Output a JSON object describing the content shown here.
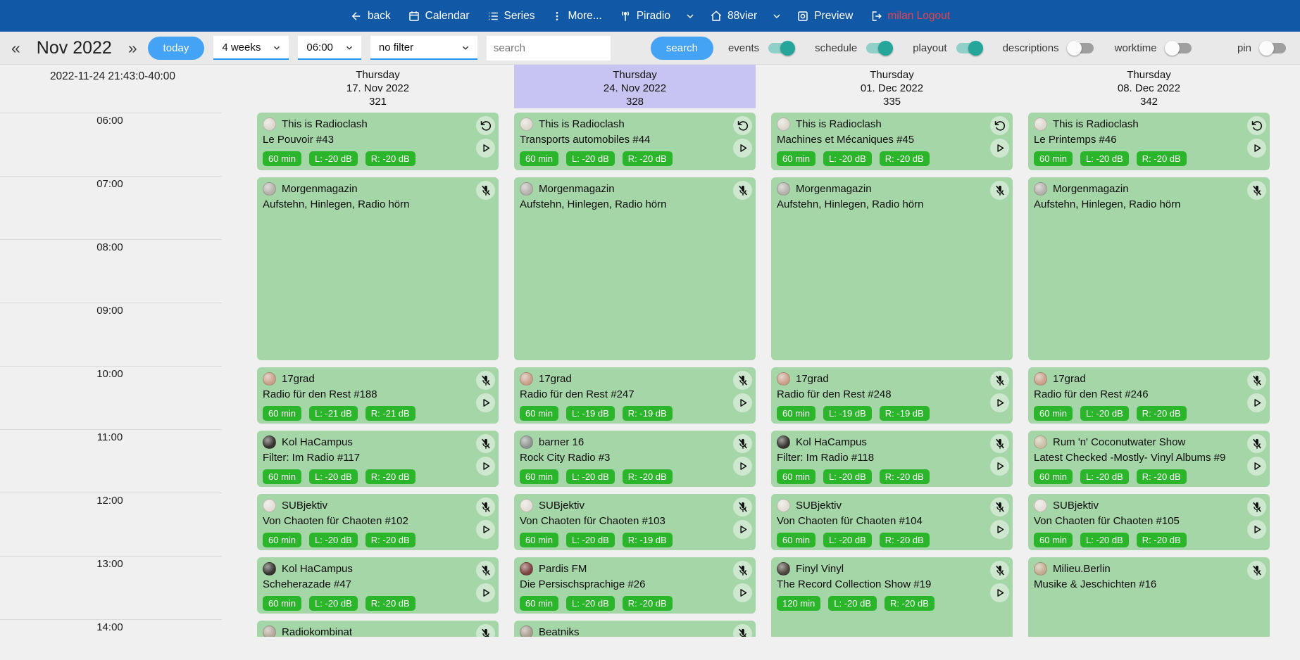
{
  "colors": {
    "nav_bg": "#1159a6",
    "accent": "#45a3f5",
    "toolbar_bg": "#e9e9e9",
    "content_bg": "#f0f0f0",
    "card_green": "#a5d6a7",
    "badge_green": "#2bb52b",
    "highlight": "#c7c4f1",
    "toggle_on": "#26a69a",
    "toggle_on_track": "#8fd0c9",
    "logout_red": "#e8434a",
    "select_underline": "#2196f3"
  },
  "nav": {
    "back": "back",
    "calendar": "Calendar",
    "series": "Series",
    "more": "More...",
    "station": "Piradio",
    "channel": "88vier",
    "preview": "Preview",
    "logout": "milan Logout"
  },
  "toolbar": {
    "prev": "«",
    "month": "Nov 2022",
    "next": "»",
    "today": "today",
    "range_select": "4 weeks",
    "time_select": "06:00",
    "filter_select": "no filter",
    "search_placeholder": "search",
    "search_button": "search",
    "toggles": [
      {
        "label": "events",
        "on": true
      },
      {
        "label": "schedule",
        "on": true
      },
      {
        "label": "playout",
        "on": true
      },
      {
        "label": "descriptions",
        "on": false
      },
      {
        "label": "worktime",
        "on": false
      }
    ],
    "pin": {
      "label": "pin",
      "on": false
    }
  },
  "grid": {
    "timestamp": "2022-11-24 21:43:0-40:00",
    "times": [
      "06:00",
      "07:00",
      "08:00",
      "09:00",
      "10:00",
      "11:00",
      "12:00",
      "13:00",
      "14:00"
    ],
    "columns": [
      {
        "day": "Thursday",
        "date": "17. Nov 2022",
        "week": "321",
        "highlight": false,
        "events": [
          {
            "row": 0,
            "span": 1,
            "show": "This is Radioclash",
            "episode": "Le Pouvoir #43",
            "badges": [
              "60 min",
              "L: -20 dB",
              "R: -20 dB"
            ],
            "top_icon": "repeat",
            "play": true,
            "avatar": "#ddd8ce"
          },
          {
            "row": 1,
            "span": 3,
            "show": "Morgenmagazin",
            "episode": "Aufstehn, Hinlegen, Radio hörn",
            "badges": [],
            "top_icon": "mic-off",
            "play": false,
            "avatar": "#b5b2ab"
          },
          {
            "row": 4,
            "span": 1,
            "show": "17grad",
            "episode": "Radio für den Rest #188",
            "badges": [
              "60 min",
              "L: -21 dB",
              "R: -21 dB"
            ],
            "top_icon": "mic-off",
            "play": true,
            "avatar": "#c9a18b"
          },
          {
            "row": 5,
            "span": 1,
            "show": "Kol HaCampus",
            "episode": "Filter: Im Radio #117",
            "badges": [
              "60 min",
              "L: -20 dB",
              "R: -20 dB"
            ],
            "top_icon": "mic-off",
            "play": true,
            "avatar": "#35342f"
          },
          {
            "row": 6,
            "span": 1,
            "show": "SUBjektiv",
            "episode": "Von Chaoten für Chaoten #102",
            "badges": [
              "60 min",
              "L: -20 dB",
              "R: -20 dB"
            ],
            "top_icon": "mic-off",
            "play": true,
            "avatar": "#e3ded6"
          },
          {
            "row": 7,
            "span": 1,
            "show": "Kol HaCampus",
            "episode": "Scheherazade #47",
            "badges": [
              "60 min",
              "L: -20 dB",
              "R: -20 dB"
            ],
            "top_icon": "mic-off",
            "play": true,
            "avatar": "#35342f"
          },
          {
            "row": 8,
            "span": 1,
            "show": "Radiokombinat",
            "episode": "",
            "badges": [],
            "top_icon": "mic-off",
            "play": false,
            "avatar": "#b3a99b"
          }
        ]
      },
      {
        "day": "Thursday",
        "date": "24. Nov 2022",
        "week": "328",
        "highlight": true,
        "events": [
          {
            "row": 0,
            "span": 1,
            "show": "This is Radioclash",
            "episode": "Transports automobiles #44",
            "badges": [
              "60 min",
              "L: -20 dB",
              "R: -20 dB"
            ],
            "top_icon": "repeat",
            "play": true,
            "avatar": "#ddd8ce"
          },
          {
            "row": 1,
            "span": 3,
            "show": "Morgenmagazin",
            "episode": "Aufstehn, Hinlegen, Radio hörn",
            "badges": [],
            "top_icon": "mic-off",
            "play": false,
            "avatar": "#b5b2ab"
          },
          {
            "row": 4,
            "span": 1,
            "show": "17grad",
            "episode": "Radio für den Rest #247",
            "badges": [
              "60 min",
              "L: -19 dB",
              "R: -19 dB"
            ],
            "top_icon": "mic-off",
            "play": true,
            "avatar": "#c9a18b"
          },
          {
            "row": 5,
            "span": 1,
            "show": "barner 16",
            "episode": "Rock City Radio #3",
            "badges": [
              "60 min",
              "L: -20 dB",
              "R: -20 dB"
            ],
            "top_icon": "mic-off",
            "play": true,
            "avatar": "#8f958f"
          },
          {
            "row": 6,
            "span": 1,
            "show": "SUBjektiv",
            "episode": "Von Chaoten für Chaoten #103",
            "badges": [
              "60 min",
              "L: -20 dB",
              "R: -19 dB"
            ],
            "top_icon": "mic-off",
            "play": true,
            "avatar": "#e3ded6"
          },
          {
            "row": 7,
            "span": 1,
            "show": "Pardis FM",
            "episode": "Die Persischsprachige #26",
            "badges": [
              "60 min",
              "L: -20 dB",
              "R: -20 dB"
            ],
            "top_icon": "mic-off",
            "play": true,
            "avatar": "#7c4440"
          },
          {
            "row": 8,
            "span": 1,
            "show": "Beatniks",
            "episode": "",
            "badges": [],
            "top_icon": "mic-off",
            "play": false,
            "avatar": "#a79e90"
          }
        ]
      },
      {
        "day": "Thursday",
        "date": "01. Dec 2022",
        "week": "335",
        "highlight": false,
        "events": [
          {
            "row": 0,
            "span": 1,
            "show": "This is Radioclash",
            "episode": "Machines et Mécaniques #45",
            "badges": [
              "60 min",
              "L: -20 dB",
              "R: -20 dB"
            ],
            "top_icon": "repeat",
            "play": true,
            "avatar": "#ddd8ce"
          },
          {
            "row": 1,
            "span": 3,
            "show": "Morgenmagazin",
            "episode": "Aufstehn, Hinlegen, Radio hörn",
            "badges": [],
            "top_icon": "mic-off",
            "play": false,
            "avatar": "#b5b2ab"
          },
          {
            "row": 4,
            "span": 1,
            "show": "17grad",
            "episode": "Radio für den Rest #248",
            "badges": [
              "60 min",
              "L: -19 dB",
              "R: -19 dB"
            ],
            "top_icon": "mic-off",
            "play": true,
            "avatar": "#c9a18b"
          },
          {
            "row": 5,
            "span": 1,
            "show": "Kol HaCampus",
            "episode": "Filter: Im Radio #118",
            "badges": [
              "60 min",
              "L: -20 dB",
              "R: -20 dB"
            ],
            "top_icon": "mic-off",
            "play": true,
            "avatar": "#35342f"
          },
          {
            "row": 6,
            "span": 1,
            "show": "SUBjektiv",
            "episode": "Von Chaoten für Chaoten #104",
            "badges": [
              "60 min",
              "L: -20 dB",
              "R: -20 dB"
            ],
            "top_icon": "mic-off",
            "play": true,
            "avatar": "#e3ded6"
          },
          {
            "row": 7,
            "span": 2,
            "show": "Finyl Vinyl",
            "episode": "The Record Collection Show #19",
            "badges": [
              "120 min",
              "L: -20 dB",
              "R: -20 dB"
            ],
            "top_icon": "mic-off",
            "play": true,
            "avatar": "#4a443c"
          }
        ]
      },
      {
        "day": "Thursday",
        "date": "08. Dec 2022",
        "week": "342",
        "highlight": false,
        "events": [
          {
            "row": 0,
            "span": 1,
            "show": "This is Radioclash",
            "episode": "Le Printemps #46",
            "badges": [
              "60 min",
              "L: -20 dB",
              "R: -20 dB"
            ],
            "top_icon": "repeat",
            "play": true,
            "avatar": "#ddd8ce"
          },
          {
            "row": 1,
            "span": 3,
            "show": "Morgenmagazin",
            "episode": "Aufstehn, Hinlegen, Radio hörn",
            "badges": [],
            "top_icon": "mic-off",
            "play": false,
            "avatar": "#b5b2ab"
          },
          {
            "row": 4,
            "span": 1,
            "show": "17grad",
            "episode": "Radio für den Rest #246",
            "badges": [
              "60 min",
              "L: -20 dB",
              "R: -20 dB"
            ],
            "top_icon": "mic-off",
            "play": true,
            "avatar": "#c9a18b"
          },
          {
            "row": 5,
            "span": 1,
            "show": "Rum 'n' Coconutwater Show",
            "episode": "Latest Checked -Mostly- Vinyl Albums #9",
            "badges": [
              "60 min",
              "L: -20 dB",
              "R: -20 dB"
            ],
            "top_icon": "mic-off",
            "play": true,
            "avatar": "#c9bfa4"
          },
          {
            "row": 6,
            "span": 1,
            "show": "SUBjektiv",
            "episode": "Von Chaoten für Chaoten #105",
            "badges": [
              "60 min",
              "L: -20 dB",
              "R: -20 dB"
            ],
            "top_icon": "mic-off",
            "play": true,
            "avatar": "#e3ded6"
          },
          {
            "row": 7,
            "span": 2,
            "show": "Milieu.Berlin",
            "episode": "Musike & Jeschichten #16",
            "badges": [],
            "top_icon": "mic-off",
            "play": false,
            "avatar": "#c2ac90"
          }
        ]
      }
    ]
  }
}
